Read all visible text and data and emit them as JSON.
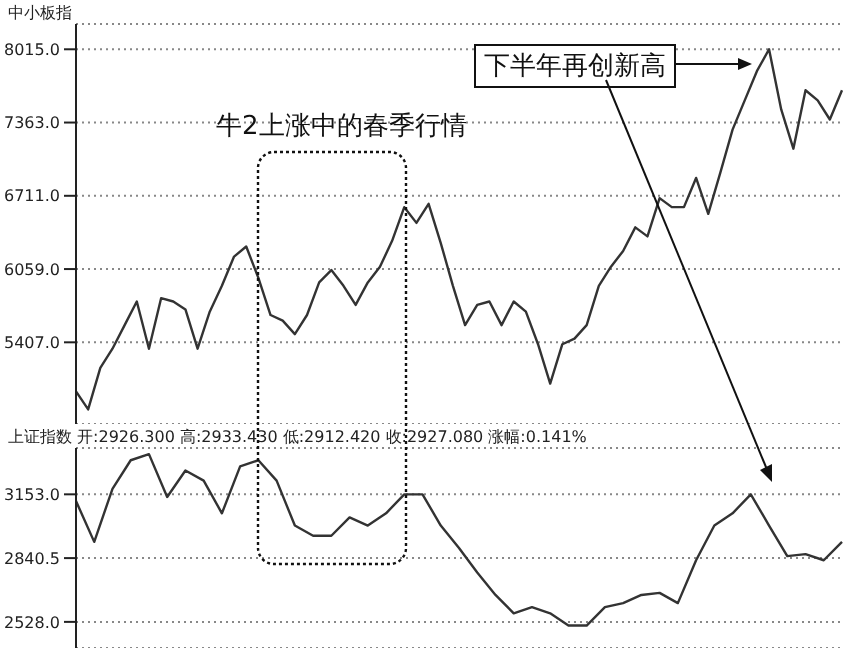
{
  "chart_data": [
    {
      "type": "line",
      "title": "中小板指",
      "annotations": [
        "牛2上涨中的春季行情",
        "下半年再创新高"
      ],
      "categories": [
        null,
        null,
        null,
        null,
        null,
        null,
        null,
        null,
        null,
        null,
        null,
        null,
        null,
        null,
        null,
        null,
        null,
        null,
        null,
        null,
        null,
        null,
        null,
        null,
        null,
        null,
        null,
        null,
        null,
        null,
        null,
        null,
        null,
        null,
        null,
        null,
        null,
        null,
        null,
        null,
        null,
        null,
        null,
        null,
        null,
        null,
        null,
        null,
        null,
        null,
        null,
        null,
        null,
        null,
        null,
        null,
        null,
        null,
        null,
        null,
        null,
        null,
        null,
        null
      ],
      "series": [
        {
          "color": "#333333",
          "values": [
            4970,
            4810,
            5180,
            5350,
            5560,
            5770,
            5350,
            5800,
            5770,
            5700,
            5350,
            5680,
            5910,
            6170,
            6260,
            5980,
            5650,
            5600,
            5480,
            5650,
            5940,
            6050,
            5910,
            5740,
            5940,
            6080,
            6310,
            6610,
            6470,
            6640,
            6290,
            5910,
            5560,
            5740,
            5770,
            5560,
            5770,
            5680,
            5390,
            5040,
            5390,
            5440,
            5560,
            5910,
            6080,
            6220,
            6430,
            6350,
            6690,
            6610,
            6610,
            6870,
            6550,
            6920,
            7300,
            7560,
            7820,
            8015,
            7480,
            7130,
            7650,
            7560,
            7390,
            7650
          ]
        }
      ],
      "ylim": [
        4680,
        8240
      ],
      "yticks": [
        {
          "value": 8015,
          "label": "8015.0"
        },
        {
          "value": 7363,
          "label": "7363.0"
        },
        {
          "value": 6711,
          "label": "6711.0"
        },
        {
          "value": 6059,
          "label": "6059.0"
        },
        {
          "value": 5407,
          "label": "5407.0"
        }
      ],
      "grid": "y",
      "tick_labels": "y"
    },
    {
      "type": "line",
      "title": "上证指数 开:2926.300 高:2933.430 低:2912.420 收:2927.080 涨幅:0.141%",
      "categories": [
        null,
        null,
        null,
        null,
        null,
        null,
        null,
        null,
        null,
        null,
        null,
        null,
        null,
        null,
        null,
        null,
        null,
        null,
        null,
        null,
        null,
        null,
        null,
        null,
        null,
        null,
        null,
        null,
        null,
        null,
        null,
        null,
        null,
        null,
        null,
        null,
        null,
        null,
        null,
        null,
        null,
        null,
        null
      ],
      "series": [
        {
          "color": "#333333",
          "values": [
            3120,
            2920,
            3180,
            3320,
            3350,
            3140,
            3270,
            3220,
            3060,
            3290,
            3320,
            3220,
            3000,
            2950,
            2950,
            3040,
            3000,
            3060,
            3153,
            3153,
            3000,
            2890,
            2770,
            2660,
            2570,
            2600,
            2570,
            2510,
            2510,
            2600,
            2620,
            2660,
            2670,
            2620,
            2830,
            3000,
            3060,
            3153,
            3000,
            2850,
            2860,
            2830,
            2920
          ]
        }
      ],
      "ylim": [
        2400,
        3380
      ],
      "yticks": [
        {
          "value": 3153,
          "label": "3153.0"
        },
        {
          "value": 2840.5,
          "label": "2840.5"
        },
        {
          "value": 2528,
          "label": "2528.0"
        }
      ],
      "grid": "y",
      "tick_labels": "y"
    }
  ]
}
